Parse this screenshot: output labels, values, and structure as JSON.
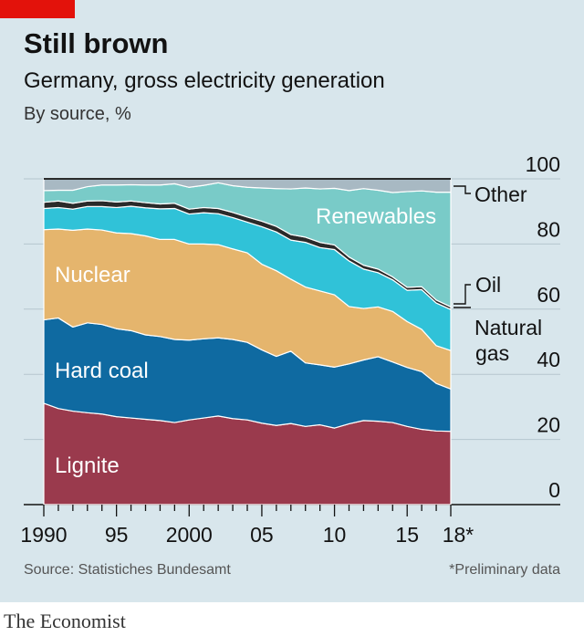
{
  "header": {
    "title": "Still brown",
    "subtitle": "Germany, gross electricity generation",
    "subsubtitle": "By source, %"
  },
  "footer": {
    "source": "Source: Statistiches Bundesamt",
    "note": "*Preliminary data",
    "brand": "The Economist"
  },
  "colors": {
    "background": "#d8e6ec",
    "brand_red": "#e3120b",
    "lignite": "#9a3a4d",
    "hard_coal": "#0f6aa1",
    "nuclear": "#e5b56d",
    "natural_gas": "#30c2d8",
    "oil": "#2a2a2a",
    "renewables": "#79cbc8",
    "other": "#a8b9c3"
  },
  "chart_data": {
    "type": "area",
    "stacked": true,
    "x": [
      1990,
      1991,
      1992,
      1993,
      1994,
      1995,
      1996,
      1997,
      1998,
      1999,
      2000,
      2001,
      2002,
      2003,
      2004,
      2005,
      2006,
      2007,
      2008,
      2009,
      2010,
      2011,
      2012,
      2013,
      2014,
      2015,
      2016,
      2017,
      2018
    ],
    "x_tick_labels": [
      {
        "x": 1990,
        "label": "1990"
      },
      {
        "x": 1995,
        "label": "95"
      },
      {
        "x": 2000,
        "label": "2000"
      },
      {
        "x": 2005,
        "label": "05"
      },
      {
        "x": 2010,
        "label": "10"
      },
      {
        "x": 2015,
        "label": "15"
      },
      {
        "x": 2018,
        "label": "18*"
      }
    ],
    "y_ticks": [
      0,
      20,
      40,
      60,
      80,
      100
    ],
    "ylim": [
      0,
      100
    ],
    "series": [
      {
        "name": "Lignite",
        "color": "#9a3a4d",
        "values": [
          31.1,
          29.5,
          28.7,
          28.2,
          27.8,
          27.0,
          26.6,
          26.2,
          25.8,
          25.2,
          26.0,
          26.6,
          27.2,
          26.4,
          26.0,
          25.0,
          24.3,
          24.9,
          24.0,
          24.5,
          23.5,
          24.8,
          25.8,
          25.6,
          25.2,
          24.0,
          23.1,
          22.6,
          22.5
        ]
      },
      {
        "name": "Hard coal",
        "color": "#0f6aa1",
        "values": [
          25.6,
          27.8,
          25.8,
          27.6,
          27.5,
          27.0,
          26.8,
          25.9,
          25.8,
          25.5,
          24.5,
          24.3,
          24.0,
          24.3,
          23.8,
          22.5,
          21.2,
          22.2,
          19.5,
          18.4,
          18.7,
          18.4,
          18.6,
          19.8,
          18.6,
          18.1,
          17.7,
          14.6,
          13.0
        ]
      },
      {
        "name": "Nuclear",
        "color": "#e5b56d",
        "values": [
          27.7,
          27.3,
          29.7,
          28.8,
          29.0,
          29.4,
          29.8,
          30.4,
          29.8,
          30.7,
          29.5,
          29.1,
          28.6,
          27.8,
          27.5,
          26.3,
          26.3,
          22.1,
          23.3,
          22.7,
          22.2,
          17.6,
          15.8,
          15.3,
          15.5,
          14.1,
          13.0,
          11.6,
          11.8
        ]
      },
      {
        "name": "Natural gas",
        "color": "#30c2d8",
        "values": [
          6.5,
          6.6,
          6.5,
          6.9,
          7.2,
          7.8,
          8.4,
          8.6,
          9.4,
          9.5,
          9.2,
          9.6,
          9.5,
          9.6,
          9.4,
          11.5,
          11.9,
          12.0,
          13.7,
          13.3,
          13.9,
          14.0,
          12.1,
          10.5,
          9.7,
          9.6,
          12.2,
          13.1,
          12.6
        ]
      },
      {
        "name": "Oil",
        "color": "#2a2a2a",
        "values": [
          1.9,
          2.0,
          1.8,
          1.7,
          1.8,
          1.7,
          1.6,
          1.6,
          1.5,
          1.6,
          1.5,
          1.6,
          1.6,
          1.6,
          1.6,
          1.7,
          1.7,
          1.7,
          1.6,
          1.6,
          1.4,
          1.2,
          1.2,
          1.1,
          0.9,
          0.9,
          0.9,
          0.9,
          0.8
        ]
      },
      {
        "name": "Renewables",
        "color": "#79cbc8",
        "values": [
          3.6,
          3.3,
          4.0,
          4.4,
          4.8,
          5.2,
          5.0,
          5.4,
          5.8,
          6.0,
          6.7,
          6.8,
          7.9,
          8.2,
          9.1,
          10.2,
          11.6,
          14.0,
          15.1,
          16.4,
          17.4,
          20.4,
          23.5,
          24.2,
          25.9,
          29.4,
          29.4,
          33.1,
          35.2
        ]
      },
      {
        "name": "Other",
        "color": "#a8b9c3",
        "values": [
          3.6,
          3.5,
          3.5,
          2.4,
          1.9,
          1.9,
          1.8,
          1.9,
          1.9,
          1.5,
          2.6,
          2.0,
          1.2,
          2.1,
          2.6,
          2.8,
          3.0,
          3.1,
          2.8,
          3.1,
          2.9,
          3.6,
          3.0,
          3.5,
          4.2,
          3.9,
          3.7,
          4.1,
          4.1
        ]
      }
    ],
    "inline_labels": [
      {
        "text": "Lignite",
        "series": "Lignite"
      },
      {
        "text": "Hard coal",
        "series": "Hard coal"
      },
      {
        "text": "Nuclear",
        "series": "Nuclear"
      },
      {
        "text": "Renewables",
        "series": "Renewables"
      }
    ],
    "side_labels": [
      {
        "text": "Other",
        "series": "Other"
      },
      {
        "text": "Oil",
        "series": "Oil"
      },
      {
        "text": "Natural",
        "series": "Natural gas"
      },
      {
        "text": "gas",
        "series": "Natural gas"
      }
    ]
  }
}
